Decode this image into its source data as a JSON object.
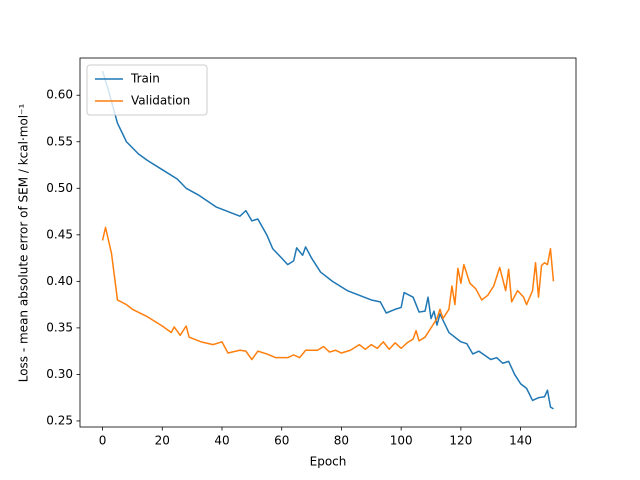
{
  "chart_data": {
    "type": "line",
    "xlabel": "Epoch",
    "ylabel": "Loss - mean absolute error of SEM / kcal·mol⁻¹",
    "xlim": [
      -7.55,
      158.55
    ],
    "ylim": [
      0.2435,
      0.64
    ],
    "xticks": [
      0,
      20,
      40,
      60,
      80,
      100,
      120,
      140
    ],
    "yticks": [
      0.25,
      {
        "value": 0.3,
        "label": "0.30"
      },
      0.35,
      {
        "value": 0.4,
        "label": "0.40"
      },
      0.45,
      {
        "value": 0.5,
        "label": "0.50"
      },
      0.55,
      {
        "value": 0.6,
        "label": "0.60"
      }
    ],
    "legend": "upper left",
    "series": [
      {
        "name": "Train",
        "color": "#1f77b4",
        "x": [
          0,
          2,
          5,
          8,
          12,
          15,
          20,
          25,
          28,
          32,
          38,
          42,
          46,
          48,
          50,
          52,
          55,
          57,
          60,
          62,
          64,
          65,
          67,
          68,
          70,
          73,
          77,
          82,
          86,
          90,
          93,
          95,
          98,
          100,
          101,
          104,
          106,
          108,
          109,
          110,
          111,
          112,
          113,
          116,
          120,
          122,
          124,
          126,
          130,
          132,
          134,
          136,
          138,
          140,
          142,
          144,
          146,
          148,
          149,
          150,
          151
        ],
        "values": [
          0.626,
          0.605,
          0.57,
          0.55,
          0.537,
          0.53,
          0.52,
          0.51,
          0.5,
          0.493,
          0.48,
          0.475,
          0.47,
          0.476,
          0.465,
          0.467,
          0.45,
          0.435,
          0.425,
          0.418,
          0.422,
          0.436,
          0.428,
          0.437,
          0.425,
          0.41,
          0.4,
          0.39,
          0.385,
          0.38,
          0.378,
          0.366,
          0.37,
          0.372,
          0.388,
          0.383,
          0.367,
          0.368,
          0.383,
          0.36,
          0.368,
          0.353,
          0.365,
          0.345,
          0.335,
          0.333,
          0.322,
          0.325,
          0.316,
          0.318,
          0.312,
          0.314,
          0.3,
          0.29,
          0.285,
          0.272,
          0.275,
          0.276,
          0.283,
          0.265,
          0.263
        ]
      },
      {
        "name": "Validation",
        "color": "#ff7f0e",
        "x": [
          0,
          1,
          3,
          5,
          8,
          10,
          15,
          20,
          23,
          24,
          26,
          28,
          29,
          33,
          37,
          40,
          42,
          46,
          48,
          50,
          52,
          55,
          58,
          62,
          64,
          66,
          68,
          72,
          74,
          76,
          78,
          80,
          83,
          86,
          88,
          90,
          92,
          94,
          96,
          98,
          100,
          102,
          104,
          105,
          106,
          108,
          110,
          112,
          113,
          114,
          116,
          117,
          118,
          119,
          120,
          121,
          123,
          125,
          127,
          129,
          131,
          133,
          135,
          136,
          137,
          139,
          141,
          142,
          144,
          145,
          146,
          147,
          148,
          149,
          150,
          151
        ],
        "values": [
          0.444,
          0.458,
          0.43,
          0.38,
          0.375,
          0.37,
          0.362,
          0.352,
          0.345,
          0.351,
          0.342,
          0.352,
          0.34,
          0.335,
          0.332,
          0.335,
          0.323,
          0.326,
          0.325,
          0.316,
          0.325,
          0.322,
          0.318,
          0.318,
          0.321,
          0.318,
          0.326,
          0.326,
          0.33,
          0.324,
          0.326,
          0.323,
          0.326,
          0.332,
          0.327,
          0.332,
          0.328,
          0.335,
          0.327,
          0.334,
          0.328,
          0.334,
          0.338,
          0.347,
          0.336,
          0.34,
          0.35,
          0.36,
          0.37,
          0.36,
          0.37,
          0.395,
          0.375,
          0.414,
          0.398,
          0.418,
          0.398,
          0.392,
          0.38,
          0.385,
          0.395,
          0.415,
          0.39,
          0.413,
          0.378,
          0.39,
          0.383,
          0.375,
          0.39,
          0.42,
          0.383,
          0.417,
          0.42,
          0.418,
          0.435,
          0.4
        ]
      }
    ]
  }
}
